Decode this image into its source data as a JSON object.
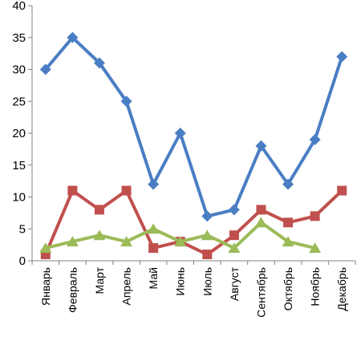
{
  "chart_data": {
    "type": "line",
    "categories": [
      "Январь",
      "Февраль",
      "Март",
      "Апрель",
      "Май",
      "Июнь",
      "Июль",
      "Август",
      "Сентябрь",
      "Октябрь",
      "Ноябрь",
      "Декабрь"
    ],
    "series": [
      {
        "color": "#4A7EC4",
        "marker": "diamond",
        "values": [
          30,
          35,
          31,
          25,
          12,
          20,
          7,
          8,
          18,
          12,
          19,
          32
        ]
      },
      {
        "color": "#C0504D",
        "marker": "square",
        "values": [
          1,
          11,
          8,
          11,
          2,
          3,
          1,
          4,
          8,
          6,
          7,
          11
        ]
      },
      {
        "color": "#9BBB59",
        "marker": "triangle",
        "values": [
          2,
          3,
          4,
          3,
          5,
          3,
          4,
          2,
          6,
          3,
          2,
          null
        ]
      }
    ],
    "yticks": [
      "0",
      "5",
      "10",
      "15",
      "20",
      "25",
      "30",
      "35",
      "40"
    ],
    "ylim": [
      0,
      40
    ],
    "grid": false,
    "title": "",
    "xlabel": "",
    "ylabel": ""
  }
}
